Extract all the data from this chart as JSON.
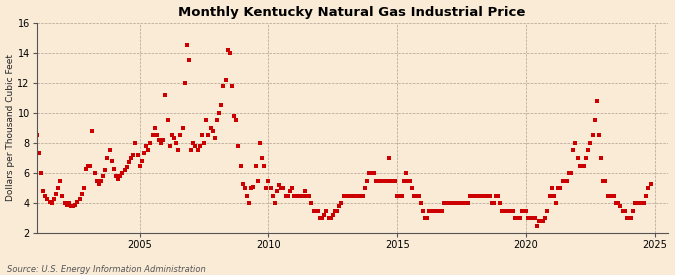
{
  "title": "Monthly Kentucky Natural Gas Industrial Price",
  "ylabel": "Dollars per Thousand Cubic Feet",
  "source": "Source: U.S. Energy Information Administration",
  "bg_color": "#faebd7",
  "marker_color": "#cc0000",
  "ylim": [
    2,
    16
  ],
  "yticks": [
    2,
    4,
    6,
    8,
    10,
    12,
    14,
    16
  ],
  "xlim_start": 2001.0,
  "xlim_end": 2025.5,
  "xticks": [
    2005,
    2010,
    2015,
    2020,
    2025
  ],
  "data": [
    [
      2001.0,
      8.5
    ],
    [
      2001.083,
      7.3
    ],
    [
      2001.167,
      6.0
    ],
    [
      2001.25,
      4.8
    ],
    [
      2001.333,
      4.5
    ],
    [
      2001.417,
      4.3
    ],
    [
      2001.5,
      4.1
    ],
    [
      2001.583,
      4.0
    ],
    [
      2001.667,
      4.3
    ],
    [
      2001.75,
      4.6
    ],
    [
      2001.833,
      5.0
    ],
    [
      2001.917,
      5.5
    ],
    [
      2002.0,
      4.5
    ],
    [
      2002.083,
      4.0
    ],
    [
      2002.167,
      3.9
    ],
    [
      2002.25,
      4.0
    ],
    [
      2002.333,
      3.8
    ],
    [
      2002.417,
      3.8
    ],
    [
      2002.5,
      3.9
    ],
    [
      2002.583,
      4.1
    ],
    [
      2002.667,
      4.3
    ],
    [
      2002.75,
      4.6
    ],
    [
      2002.833,
      5.0
    ],
    [
      2002.917,
      6.3
    ],
    [
      2003.0,
      6.5
    ],
    [
      2003.083,
      6.5
    ],
    [
      2003.167,
      8.8
    ],
    [
      2003.25,
      6.0
    ],
    [
      2003.333,
      5.5
    ],
    [
      2003.417,
      5.3
    ],
    [
      2003.5,
      5.5
    ],
    [
      2003.583,
      5.8
    ],
    [
      2003.667,
      6.2
    ],
    [
      2003.75,
      7.0
    ],
    [
      2003.833,
      7.5
    ],
    [
      2003.917,
      6.8
    ],
    [
      2004.0,
      6.3
    ],
    [
      2004.083,
      5.8
    ],
    [
      2004.167,
      5.6
    ],
    [
      2004.25,
      5.8
    ],
    [
      2004.333,
      6.0
    ],
    [
      2004.417,
      6.2
    ],
    [
      2004.5,
      6.4
    ],
    [
      2004.583,
      6.7
    ],
    [
      2004.667,
      7.0
    ],
    [
      2004.75,
      7.2
    ],
    [
      2004.833,
      8.0
    ],
    [
      2004.917,
      7.2
    ],
    [
      2005.0,
      6.5
    ],
    [
      2005.083,
      6.8
    ],
    [
      2005.167,
      7.3
    ],
    [
      2005.25,
      7.8
    ],
    [
      2005.333,
      7.5
    ],
    [
      2005.417,
      8.0
    ],
    [
      2005.5,
      8.5
    ],
    [
      2005.583,
      9.0
    ],
    [
      2005.667,
      8.5
    ],
    [
      2005.75,
      8.2
    ],
    [
      2005.833,
      8.0
    ],
    [
      2005.917,
      8.2
    ],
    [
      2006.0,
      11.2
    ],
    [
      2006.083,
      9.5
    ],
    [
      2006.167,
      7.8
    ],
    [
      2006.25,
      8.5
    ],
    [
      2006.333,
      8.3
    ],
    [
      2006.417,
      8.0
    ],
    [
      2006.5,
      7.5
    ],
    [
      2006.583,
      8.5
    ],
    [
      2006.667,
      9.0
    ],
    [
      2006.75,
      12.0
    ],
    [
      2006.833,
      14.5
    ],
    [
      2006.917,
      13.5
    ],
    [
      2007.0,
      7.5
    ],
    [
      2007.083,
      8.0
    ],
    [
      2007.167,
      7.8
    ],
    [
      2007.25,
      7.5
    ],
    [
      2007.333,
      7.8
    ],
    [
      2007.417,
      8.5
    ],
    [
      2007.5,
      8.0
    ],
    [
      2007.583,
      9.5
    ],
    [
      2007.667,
      8.5
    ],
    [
      2007.75,
      9.0
    ],
    [
      2007.833,
      8.8
    ],
    [
      2007.917,
      8.3
    ],
    [
      2008.0,
      9.5
    ],
    [
      2008.083,
      10.0
    ],
    [
      2008.167,
      10.5
    ],
    [
      2008.25,
      11.8
    ],
    [
      2008.333,
      12.2
    ],
    [
      2008.417,
      14.2
    ],
    [
      2008.5,
      14.0
    ],
    [
      2008.583,
      11.8
    ],
    [
      2008.667,
      9.8
    ],
    [
      2008.75,
      9.5
    ],
    [
      2008.833,
      7.8
    ],
    [
      2008.917,
      6.5
    ],
    [
      2009.0,
      5.3
    ],
    [
      2009.083,
      5.0
    ],
    [
      2009.167,
      4.5
    ],
    [
      2009.25,
      4.0
    ],
    [
      2009.333,
      5.0
    ],
    [
      2009.417,
      5.1
    ],
    [
      2009.5,
      6.5
    ],
    [
      2009.583,
      5.5
    ],
    [
      2009.667,
      8.0
    ],
    [
      2009.75,
      7.0
    ],
    [
      2009.833,
      6.5
    ],
    [
      2009.917,
      5.0
    ],
    [
      2010.0,
      5.5
    ],
    [
      2010.083,
      5.0
    ],
    [
      2010.167,
      4.5
    ],
    [
      2010.25,
      4.0
    ],
    [
      2010.333,
      4.8
    ],
    [
      2010.417,
      5.2
    ],
    [
      2010.5,
      5.0
    ],
    [
      2010.583,
      5.0
    ],
    [
      2010.667,
      4.5
    ],
    [
      2010.75,
      4.5
    ],
    [
      2010.833,
      4.8
    ],
    [
      2010.917,
      5.0
    ],
    [
      2011.0,
      4.5
    ],
    [
      2011.083,
      4.5
    ],
    [
      2011.167,
      4.5
    ],
    [
      2011.25,
      4.5
    ],
    [
      2011.333,
      4.5
    ],
    [
      2011.417,
      4.8
    ],
    [
      2011.5,
      4.5
    ],
    [
      2011.583,
      4.5
    ],
    [
      2011.667,
      4.0
    ],
    [
      2011.75,
      3.5
    ],
    [
      2011.833,
      3.5
    ],
    [
      2011.917,
      3.5
    ],
    [
      2012.0,
      3.0
    ],
    [
      2012.083,
      3.0
    ],
    [
      2012.167,
      3.2
    ],
    [
      2012.25,
      3.5
    ],
    [
      2012.333,
      3.0
    ],
    [
      2012.417,
      3.0
    ],
    [
      2012.5,
      3.2
    ],
    [
      2012.583,
      3.5
    ],
    [
      2012.667,
      3.5
    ],
    [
      2012.75,
      3.8
    ],
    [
      2012.833,
      4.0
    ],
    [
      2012.917,
      4.5
    ],
    [
      2013.0,
      4.5
    ],
    [
      2013.083,
      4.5
    ],
    [
      2013.167,
      4.5
    ],
    [
      2013.25,
      4.5
    ],
    [
      2013.333,
      4.5
    ],
    [
      2013.417,
      4.5
    ],
    [
      2013.5,
      4.5
    ],
    [
      2013.583,
      4.5
    ],
    [
      2013.667,
      4.5
    ],
    [
      2013.75,
      5.0
    ],
    [
      2013.833,
      5.5
    ],
    [
      2013.917,
      6.0
    ],
    [
      2014.0,
      6.0
    ],
    [
      2014.083,
      6.0
    ],
    [
      2014.167,
      5.5
    ],
    [
      2014.25,
      5.5
    ],
    [
      2014.333,
      5.5
    ],
    [
      2014.417,
      5.5
    ],
    [
      2014.5,
      5.5
    ],
    [
      2014.583,
      5.5
    ],
    [
      2014.667,
      7.0
    ],
    [
      2014.75,
      5.5
    ],
    [
      2014.833,
      5.5
    ],
    [
      2014.917,
      5.5
    ],
    [
      2015.0,
      4.5
    ],
    [
      2015.083,
      4.5
    ],
    [
      2015.167,
      4.5
    ],
    [
      2015.25,
      5.5
    ],
    [
      2015.333,
      6.0
    ],
    [
      2015.417,
      5.5
    ],
    [
      2015.5,
      5.5
    ],
    [
      2015.583,
      5.0
    ],
    [
      2015.667,
      4.5
    ],
    [
      2015.75,
      4.5
    ],
    [
      2015.833,
      4.5
    ],
    [
      2015.917,
      4.0
    ],
    [
      2016.0,
      3.5
    ],
    [
      2016.083,
      3.0
    ],
    [
      2016.167,
      3.0
    ],
    [
      2016.25,
      3.5
    ],
    [
      2016.333,
      3.5
    ],
    [
      2016.417,
      3.5
    ],
    [
      2016.5,
      3.5
    ],
    [
      2016.583,
      3.5
    ],
    [
      2016.667,
      3.5
    ],
    [
      2016.75,
      3.5
    ],
    [
      2016.833,
      4.0
    ],
    [
      2016.917,
      4.0
    ],
    [
      2017.0,
      4.0
    ],
    [
      2017.083,
      4.0
    ],
    [
      2017.167,
      4.0
    ],
    [
      2017.25,
      4.0
    ],
    [
      2017.333,
      4.0
    ],
    [
      2017.417,
      4.0
    ],
    [
      2017.5,
      4.0
    ],
    [
      2017.583,
      4.0
    ],
    [
      2017.667,
      4.0
    ],
    [
      2017.75,
      4.0
    ],
    [
      2017.833,
      4.5
    ],
    [
      2017.917,
      4.5
    ],
    [
      2018.0,
      4.5
    ],
    [
      2018.083,
      4.5
    ],
    [
      2018.167,
      4.5
    ],
    [
      2018.25,
      4.5
    ],
    [
      2018.333,
      4.5
    ],
    [
      2018.417,
      4.5
    ],
    [
      2018.5,
      4.5
    ],
    [
      2018.583,
      4.5
    ],
    [
      2018.667,
      4.0
    ],
    [
      2018.75,
      4.0
    ],
    [
      2018.833,
      4.5
    ],
    [
      2018.917,
      4.5
    ],
    [
      2019.0,
      4.0
    ],
    [
      2019.083,
      3.5
    ],
    [
      2019.167,
      3.5
    ],
    [
      2019.25,
      3.5
    ],
    [
      2019.333,
      3.5
    ],
    [
      2019.417,
      3.5
    ],
    [
      2019.5,
      3.5
    ],
    [
      2019.583,
      3.0
    ],
    [
      2019.667,
      3.0
    ],
    [
      2019.75,
      3.0
    ],
    [
      2019.833,
      3.5
    ],
    [
      2019.917,
      3.5
    ],
    [
      2020.0,
      3.5
    ],
    [
      2020.083,
      3.0
    ],
    [
      2020.167,
      3.0
    ],
    [
      2020.25,
      3.0
    ],
    [
      2020.333,
      3.0
    ],
    [
      2020.417,
      2.5
    ],
    [
      2020.5,
      2.8
    ],
    [
      2020.583,
      2.8
    ],
    [
      2020.667,
      2.8
    ],
    [
      2020.75,
      3.0
    ],
    [
      2020.833,
      3.5
    ],
    [
      2020.917,
      4.5
    ],
    [
      2021.0,
      5.0
    ],
    [
      2021.083,
      4.5
    ],
    [
      2021.167,
      4.0
    ],
    [
      2021.25,
      5.0
    ],
    [
      2021.333,
      5.0
    ],
    [
      2021.417,
      5.5
    ],
    [
      2021.5,
      5.5
    ],
    [
      2021.583,
      5.5
    ],
    [
      2021.667,
      6.0
    ],
    [
      2021.75,
      6.0
    ],
    [
      2021.833,
      7.5
    ],
    [
      2021.917,
      8.0
    ],
    [
      2022.0,
      7.0
    ],
    [
      2022.083,
      6.5
    ],
    [
      2022.167,
      6.5
    ],
    [
      2022.25,
      6.5
    ],
    [
      2022.333,
      7.0
    ],
    [
      2022.417,
      7.5
    ],
    [
      2022.5,
      8.0
    ],
    [
      2022.583,
      8.5
    ],
    [
      2022.667,
      9.5
    ],
    [
      2022.75,
      10.8
    ],
    [
      2022.833,
      8.5
    ],
    [
      2022.917,
      7.0
    ],
    [
      2023.0,
      5.5
    ],
    [
      2023.083,
      5.5
    ],
    [
      2023.167,
      4.5
    ],
    [
      2023.25,
      4.5
    ],
    [
      2023.333,
      4.5
    ],
    [
      2023.417,
      4.5
    ],
    [
      2023.5,
      4.0
    ],
    [
      2023.583,
      4.0
    ],
    [
      2023.667,
      3.8
    ],
    [
      2023.75,
      3.5
    ],
    [
      2023.833,
      3.5
    ],
    [
      2023.917,
      3.0
    ],
    [
      2024.0,
      3.0
    ],
    [
      2024.083,
      3.0
    ],
    [
      2024.167,
      3.5
    ],
    [
      2024.25,
      4.0
    ],
    [
      2024.333,
      4.0
    ],
    [
      2024.417,
      4.0
    ],
    [
      2024.5,
      4.0
    ],
    [
      2024.583,
      4.0
    ],
    [
      2024.667,
      4.5
    ],
    [
      2024.75,
      5.0
    ],
    [
      2024.833,
      5.3
    ]
  ]
}
